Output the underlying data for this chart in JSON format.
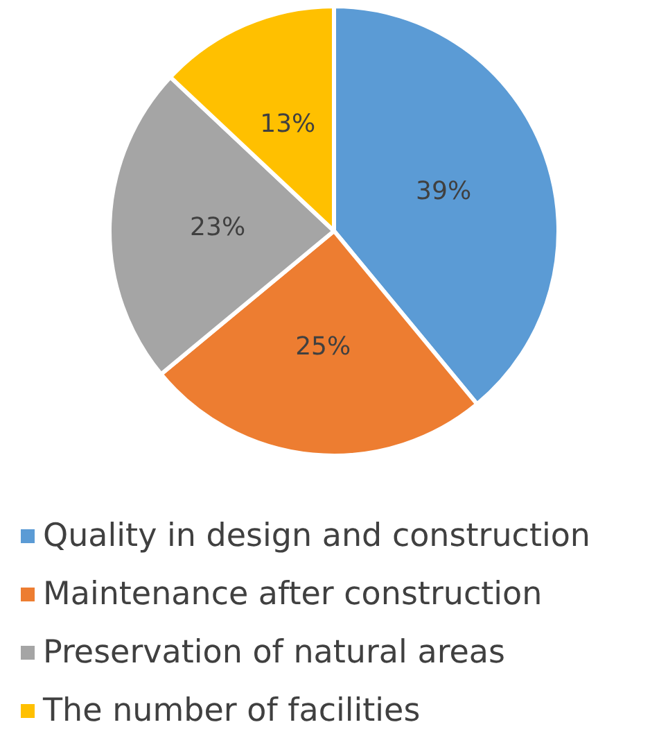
{
  "chart_data": {
    "type": "pie",
    "categories": [
      "Quality in design and construction",
      "Maintenance after construction",
      "Preservation of natural areas",
      "The number of facilities"
    ],
    "values": [
      39,
      25,
      23,
      13
    ],
    "colors": [
      "#5b9bd5",
      "#ed7d31",
      "#a5a5a5",
      "#ffc000"
    ],
    "value_labels": [
      "39%",
      "25%",
      "23%",
      "13%"
    ],
    "legend": "bottom"
  }
}
